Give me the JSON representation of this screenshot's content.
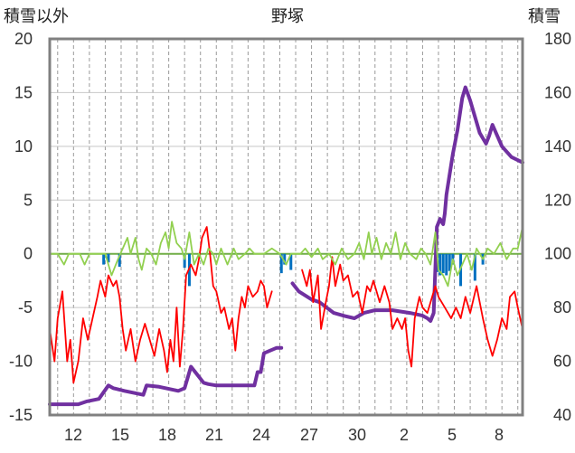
{
  "chart_data": {
    "type": "line",
    "title": "野塚",
    "y_left_label": "積雪以外",
    "y_right_label": "積雪",
    "y_left_range": [
      -15,
      20
    ],
    "y_right_range": [
      40,
      180
    ],
    "y_left_ticks": [
      "20",
      "15",
      "10",
      "5",
      "0",
      "-5",
      "-10",
      "-15"
    ],
    "y_right_ticks": [
      "180",
      "160",
      "140",
      "120",
      "100",
      "80",
      "60",
      "40"
    ],
    "x_tick_labels": [
      "12",
      "15",
      "18",
      "21",
      "24",
      "27",
      "30",
      "2",
      "5",
      "8"
    ],
    "x_day_range": [
      10.5,
      40.3
    ],
    "grid": "dashed-vertical-daily",
    "legend": "none",
    "series": [
      {
        "axis": "right",
        "color": "#7030a0",
        "points": [
          [
            10.5,
            44
          ],
          [
            12.3,
            44
          ],
          [
            12.8,
            45
          ],
          [
            13.6,
            46
          ],
          [
            14.2,
            51
          ],
          [
            14.5,
            50
          ],
          [
            15.2,
            49
          ],
          [
            16.0,
            48
          ],
          [
            16.4,
            47.5
          ],
          [
            16.6,
            51
          ],
          [
            17.4,
            50.5
          ],
          [
            18.6,
            49
          ],
          [
            19.0,
            50
          ],
          [
            19.4,
            58
          ],
          [
            19.8,
            55
          ],
          [
            20.2,
            52
          ],
          [
            20.5,
            51.5
          ],
          [
            21.0,
            51
          ],
          [
            22.0,
            51
          ],
          [
            23.4,
            51
          ],
          [
            23.6,
            56
          ],
          [
            23.8,
            56
          ],
          [
            24.0,
            63
          ],
          [
            24.4,
            64
          ],
          [
            24.8,
            65
          ],
          [
            25.1,
            65
          ]
        ]
      },
      {
        "axis": "right",
        "color": "#7030a0",
        "points": [
          [
            25.8,
            89
          ],
          [
            26.2,
            86
          ],
          [
            27.0,
            83
          ],
          [
            27.5,
            82
          ],
          [
            28.4,
            78
          ],
          [
            29.0,
            77
          ],
          [
            29.7,
            76
          ],
          [
            30.3,
            78
          ],
          [
            31.0,
            79
          ],
          [
            32.1,
            79
          ],
          [
            33.2,
            78
          ],
          [
            34.0,
            77
          ],
          [
            34.3,
            76
          ],
          [
            34.5,
            75
          ],
          [
            34.7,
            78
          ],
          [
            34.9,
            110
          ],
          [
            35.1,
            113
          ],
          [
            35.3,
            111
          ],
          [
            35.4,
            115
          ],
          [
            35.5,
            122
          ],
          [
            35.9,
            137
          ],
          [
            36.2,
            146
          ],
          [
            36.5,
            158
          ],
          [
            36.7,
            162
          ],
          [
            37.0,
            157
          ],
          [
            37.6,
            145
          ],
          [
            38.0,
            141
          ],
          [
            38.2,
            144
          ],
          [
            38.4,
            148
          ],
          [
            39.0,
            140
          ],
          [
            39.6,
            136
          ],
          [
            40.3,
            134
          ]
        ]
      },
      {
        "axis": "left",
        "color": "#ff0000",
        "points": [
          [
            10.5,
            -7
          ],
          [
            10.8,
            -10
          ],
          [
            11.0,
            -6
          ],
          [
            11.3,
            -3.5
          ],
          [
            11.6,
            -10
          ],
          [
            11.8,
            -8
          ],
          [
            12.0,
            -12
          ],
          [
            12.3,
            -10
          ],
          [
            12.6,
            -6
          ],
          [
            12.9,
            -8
          ],
          [
            13.2,
            -6
          ],
          [
            13.5,
            -4
          ],
          [
            13.7,
            -2.5
          ],
          [
            14.0,
            -4
          ],
          [
            14.2,
            -2
          ],
          [
            14.5,
            -3
          ],
          [
            14.7,
            -2.5
          ],
          [
            14.9,
            -4
          ],
          [
            15.1,
            -7
          ],
          [
            15.3,
            -9
          ],
          [
            15.6,
            -7
          ],
          [
            15.9,
            -10
          ],
          [
            16.2,
            -8
          ],
          [
            16.5,
            -6.5
          ],
          [
            16.8,
            -8
          ],
          [
            17.1,
            -9.5
          ],
          [
            17.4,
            -7
          ],
          [
            17.7,
            -9
          ],
          [
            17.9,
            -11
          ],
          [
            18.1,
            -8
          ],
          [
            18.3,
            -10
          ],
          [
            18.5,
            -5
          ],
          [
            18.7,
            -10.5
          ],
          [
            18.9,
            -7
          ],
          [
            19.1,
            -2
          ],
          [
            19.4,
            -1
          ],
          [
            19.7,
            -2
          ],
          [
            19.9,
            -0.5
          ],
          [
            20.1,
            1.5
          ],
          [
            20.4,
            2.5
          ],
          [
            20.6,
            0
          ],
          [
            20.8,
            -3
          ],
          [
            21.0,
            -3.5
          ],
          [
            21.3,
            -5.5
          ],
          [
            21.5,
            -5
          ],
          [
            21.8,
            -7
          ],
          [
            22.0,
            -6
          ],
          [
            22.2,
            -9
          ],
          [
            22.4,
            -6
          ],
          [
            22.6,
            -4
          ],
          [
            22.8,
            -5
          ],
          [
            23.0,
            -3
          ],
          [
            23.3,
            -4
          ],
          [
            23.6,
            -3.5
          ],
          [
            23.8,
            -2.5
          ],
          [
            24.0,
            -3
          ],
          [
            24.2,
            -5
          ],
          [
            24.5,
            -3.5
          ]
        ]
      },
      {
        "axis": "left",
        "color": "#ff0000",
        "points": [
          [
            26.4,
            -1.5
          ],
          [
            26.7,
            -3
          ],
          [
            26.9,
            -1.5
          ],
          [
            27.1,
            -4.5
          ],
          [
            27.4,
            -2
          ],
          [
            27.6,
            -7
          ],
          [
            27.9,
            -4.5
          ],
          [
            28.1,
            -3
          ],
          [
            28.3,
            -0.3
          ],
          [
            28.5,
            -3
          ],
          [
            28.8,
            -1
          ],
          [
            29.0,
            -2.5
          ],
          [
            29.3,
            -2
          ],
          [
            29.6,
            -4
          ],
          [
            29.9,
            -3.5
          ],
          [
            30.2,
            -5.5
          ],
          [
            30.5,
            -3
          ],
          [
            30.7,
            -3.5
          ],
          [
            30.9,
            -2.5
          ],
          [
            31.1,
            -3.5
          ],
          [
            31.3,
            -4.5
          ],
          [
            31.6,
            -3
          ],
          [
            31.9,
            -4.5
          ],
          [
            32.1,
            -7
          ],
          [
            32.4,
            -6
          ],
          [
            32.7,
            -7
          ],
          [
            32.9,
            -6
          ],
          [
            33.1,
            -9
          ],
          [
            33.3,
            -10.5
          ],
          [
            33.5,
            -6
          ],
          [
            33.8,
            -4
          ],
          [
            34.0,
            -5
          ],
          [
            34.3,
            -5.5
          ],
          [
            34.6,
            -4
          ],
          [
            34.8,
            -3
          ],
          [
            35.0,
            -4
          ],
          [
            35.4,
            -5
          ],
          [
            35.8,
            -6
          ],
          [
            36.1,
            -5
          ],
          [
            36.4,
            -6
          ],
          [
            36.7,
            -4
          ],
          [
            37.0,
            -5.5
          ],
          [
            37.4,
            -3
          ],
          [
            37.8,
            -6
          ],
          [
            38.1,
            -8
          ],
          [
            38.4,
            -9.5
          ],
          [
            38.7,
            -8
          ],
          [
            39.0,
            -6
          ],
          [
            39.3,
            -7
          ],
          [
            39.5,
            -4
          ],
          [
            39.8,
            -3.5
          ],
          [
            40.0,
            -5
          ],
          [
            40.3,
            -7
          ]
        ]
      },
      {
        "axis": "left",
        "color": "#92d050",
        "points": [
          [
            10.5,
            0
          ],
          [
            11.0,
            0
          ],
          [
            11.4,
            -1
          ],
          [
            11.7,
            0
          ],
          [
            12.4,
            0
          ],
          [
            12.7,
            -1
          ],
          [
            13.0,
            0
          ],
          [
            14.0,
            0
          ],
          [
            14.4,
            -2
          ],
          [
            14.8,
            -0.5
          ],
          [
            15.4,
            1.5
          ],
          [
            15.6,
            0
          ],
          [
            15.9,
            1.5
          ],
          [
            16.1,
            -0.5
          ],
          [
            16.3,
            -1.5
          ],
          [
            16.6,
            0.5
          ],
          [
            16.9,
            0
          ],
          [
            17.2,
            -1
          ],
          [
            17.5,
            1
          ],
          [
            17.8,
            2
          ],
          [
            18.0,
            0.5
          ],
          [
            18.2,
            3
          ],
          [
            18.5,
            1
          ],
          [
            18.8,
            0.5
          ],
          [
            19.0,
            -0.5
          ],
          [
            19.3,
            2
          ],
          [
            19.6,
            -1
          ],
          [
            19.9,
            0
          ],
          [
            20.2,
            -1
          ],
          [
            20.5,
            0.5
          ],
          [
            20.8,
            0
          ],
          [
            21.0,
            -1
          ],
          [
            21.3,
            0.5
          ],
          [
            21.7,
            -1
          ],
          [
            22.1,
            0.5
          ],
          [
            22.4,
            -0.5
          ],
          [
            22.8,
            0
          ],
          [
            23.1,
            0.5
          ],
          [
            23.4,
            0
          ],
          [
            24.0,
            0
          ],
          [
            24.5,
            0.5
          ],
          [
            25.0,
            0
          ],
          [
            25.4,
            -1
          ],
          [
            25.7,
            0
          ],
          [
            26.3,
            0
          ],
          [
            26.6,
            0.5
          ],
          [
            27.0,
            -0.3
          ],
          [
            27.4,
            0.5
          ],
          [
            27.7,
            -0.5
          ],
          [
            28.1,
            0
          ],
          [
            28.5,
            -1
          ],
          [
            28.9,
            0.5
          ],
          [
            29.3,
            -0.5
          ],
          [
            29.7,
            0
          ],
          [
            30.0,
            1
          ],
          [
            30.3,
            -0.5
          ],
          [
            30.6,
            2
          ],
          [
            30.8,
            0
          ],
          [
            31.1,
            1.5
          ],
          [
            31.4,
            -0.5
          ],
          [
            31.7,
            1
          ],
          [
            32.0,
            0
          ],
          [
            32.3,
            2
          ],
          [
            32.6,
            -0.5
          ],
          [
            32.9,
            1
          ],
          [
            33.2,
            0
          ],
          [
            33.6,
            -0.5
          ],
          [
            33.9,
            0.5
          ],
          [
            34.2,
            0
          ],
          [
            34.5,
            -1
          ],
          [
            34.8,
            2
          ],
          [
            35.0,
            -1.5
          ],
          [
            35.3,
            -2
          ],
          [
            35.6,
            -3
          ],
          [
            35.9,
            -0.5
          ],
          [
            36.2,
            -2
          ],
          [
            36.5,
            -1
          ],
          [
            36.8,
            0
          ],
          [
            37.1,
            -1.5
          ],
          [
            37.4,
            0.5
          ],
          [
            37.8,
            -0.5
          ],
          [
            38.1,
            0.5
          ],
          [
            38.5,
            0
          ],
          [
            38.9,
            1
          ],
          [
            39.3,
            -0.5
          ],
          [
            39.7,
            0.5
          ],
          [
            40.0,
            0.5
          ],
          [
            40.3,
            2.5
          ]
        ]
      }
    ],
    "bars": {
      "axis": "left",
      "color": "#0070c0",
      "points": [
        [
          13.9,
          -1
        ],
        [
          14.2,
          -0.8
        ],
        [
          14.9,
          -1.2
        ],
        [
          19.0,
          -1.3
        ],
        [
          19.3,
          -3
        ],
        [
          25.1,
          -1.8
        ],
        [
          25.3,
          -1
        ],
        [
          25.7,
          -1.5
        ],
        [
          34.9,
          -1.7
        ],
        [
          35.1,
          -2
        ],
        [
          35.3,
          -1.8
        ],
        [
          35.5,
          -2
        ],
        [
          35.7,
          -1.6
        ],
        [
          35.9,
          -1
        ],
        [
          36.4,
          -3
        ],
        [
          37.3,
          -2.5
        ],
        [
          37.8,
          -1
        ]
      ]
    }
  }
}
